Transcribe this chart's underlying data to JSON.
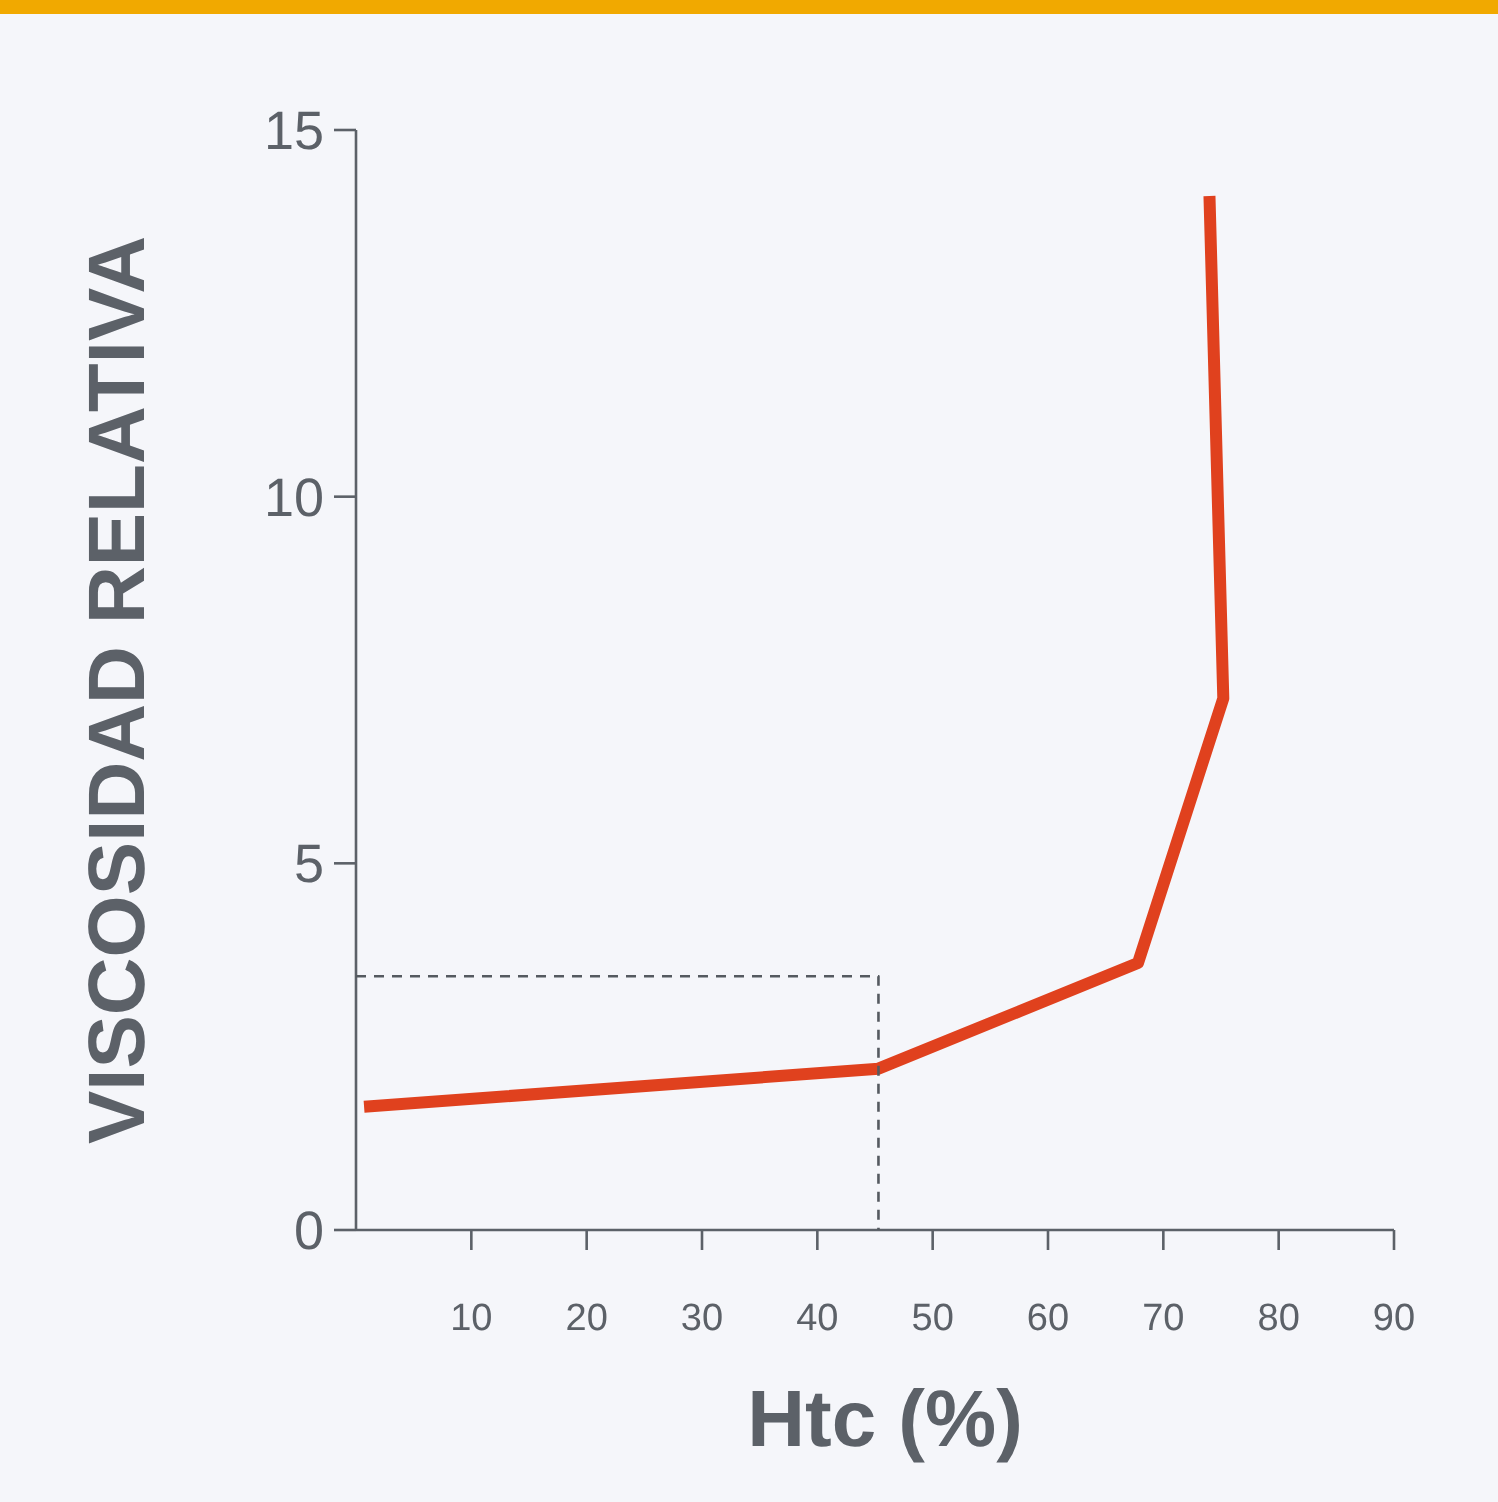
{
  "chart_data": {
    "type": "line",
    "xlabel": "Htc (%)",
    "ylabel": "VISCOSIDAD RELATIVA",
    "xlim": [
      0,
      90
    ],
    "xticks": [
      10,
      20,
      30,
      40,
      50,
      60,
      70,
      80,
      90
    ],
    "ylim": [
      0,
      15
    ],
    "yticks": [
      0,
      5,
      10,
      15
    ],
    "grid": false,
    "marker": "none",
    "series": [
      {
        "color": "#e0411e",
        "x": [
          0.7,
          45.3,
          67.8,
          75.2,
          74
        ],
        "values": [
          1.68,
          2.2,
          3.64,
          7.25,
          14.1
        ],
        "line_style": "solid"
      },
      {
        "color": "#555a60",
        "x": [
          0,
          45.3,
          45.3
        ],
        "values": [
          3.46,
          3.46,
          0
        ],
        "line_style": "dashed"
      }
    ]
  }
}
